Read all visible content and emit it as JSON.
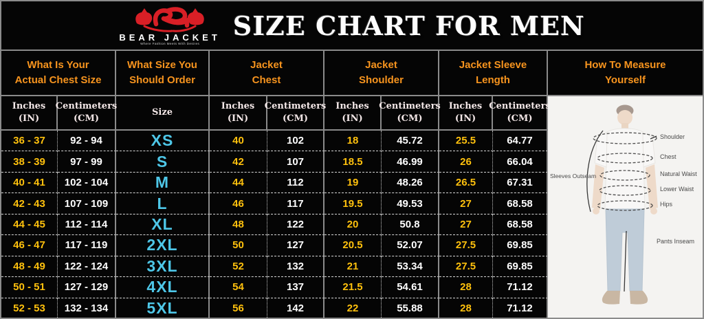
{
  "banner": {
    "brand_name": "BEAR JACKET",
    "brand_tagline": "Where Fashion Meets With Desires",
    "title": "SIZE CHART FOR MEN"
  },
  "colors": {
    "header_orange": "#f7941e",
    "value_yellow": "#ffc10d",
    "size_cyan": "#4ec7e8",
    "logo_red": "#d81f26",
    "table_border_gray": "#8b8b8b"
  },
  "chart_data": {
    "type": "table",
    "title": "SIZE CHART FOR MEN",
    "column_groups": [
      {
        "label": "What Is Your\nActual Chest Size",
        "columns": [
          "Inches (IN)",
          "Centimeters (CM)"
        ]
      },
      {
        "label": "What Size You\nShould Order",
        "columns": [
          "Size"
        ]
      },
      {
        "label": "Jacket\nChest",
        "columns": [
          "Inches (IN)",
          "Centimeters (CM)"
        ]
      },
      {
        "label": "Jacket\nShoulder",
        "columns": [
          "Inches (IN)",
          "Centimeters (CM)"
        ]
      },
      {
        "label": "Jacket Sleeve\nLength",
        "columns": [
          "Inches (IN)",
          "Centimeters (CM)"
        ]
      },
      {
        "label": "How To Measure\nYourself",
        "columns": []
      }
    ],
    "subheaders": [
      "Inches\n(IN)",
      "Centimeters\n(CM)",
      "Size",
      "Inches\n(IN)",
      "Centimeters\n(CM)",
      "Inches\n(IN)",
      "Centimeters\n(CM)",
      "Inches\n(IN)",
      "Centimeters\n(CM)"
    ],
    "rows": [
      [
        "36 - 37",
        "92 - 94",
        "XS",
        "40",
        "102",
        "18",
        "45.72",
        "25.5",
        "64.77"
      ],
      [
        "38 - 39",
        "97 - 99",
        "S",
        "42",
        "107",
        "18.5",
        "46.99",
        "26",
        "66.04"
      ],
      [
        "40 - 41",
        "102 - 104",
        "M",
        "44",
        "112",
        "19",
        "48.26",
        "26.5",
        "67.31"
      ],
      [
        "42 - 43",
        "107 - 109",
        "L",
        "46",
        "117",
        "19.5",
        "49.53",
        "27",
        "68.58"
      ],
      [
        "44 - 45",
        "112 - 114",
        "XL",
        "48",
        "122",
        "20",
        "50.8",
        "27",
        "68.58"
      ],
      [
        "46 - 47",
        "117 - 119",
        "2XL",
        "50",
        "127",
        "20.5",
        "52.07",
        "27.5",
        "69.85"
      ],
      [
        "48 - 49",
        "122 - 124",
        "3XL",
        "52",
        "132",
        "21",
        "53.34",
        "27.5",
        "69.85"
      ],
      [
        "50 - 51",
        "127 - 129",
        "4XL",
        "54",
        "137",
        "21.5",
        "54.61",
        "28",
        "71.12"
      ],
      [
        "52 - 53",
        "132 - 134",
        "5XL",
        "56",
        "142",
        "22",
        "55.88",
        "28",
        "71.12"
      ]
    ]
  },
  "measure_panel": {
    "left_label": "Sleeves Outseam",
    "right_labels": [
      "Shoulder",
      "Chest",
      "Natural Waist",
      "Lower Waist",
      "Hips",
      "Pants Inseam"
    ]
  }
}
